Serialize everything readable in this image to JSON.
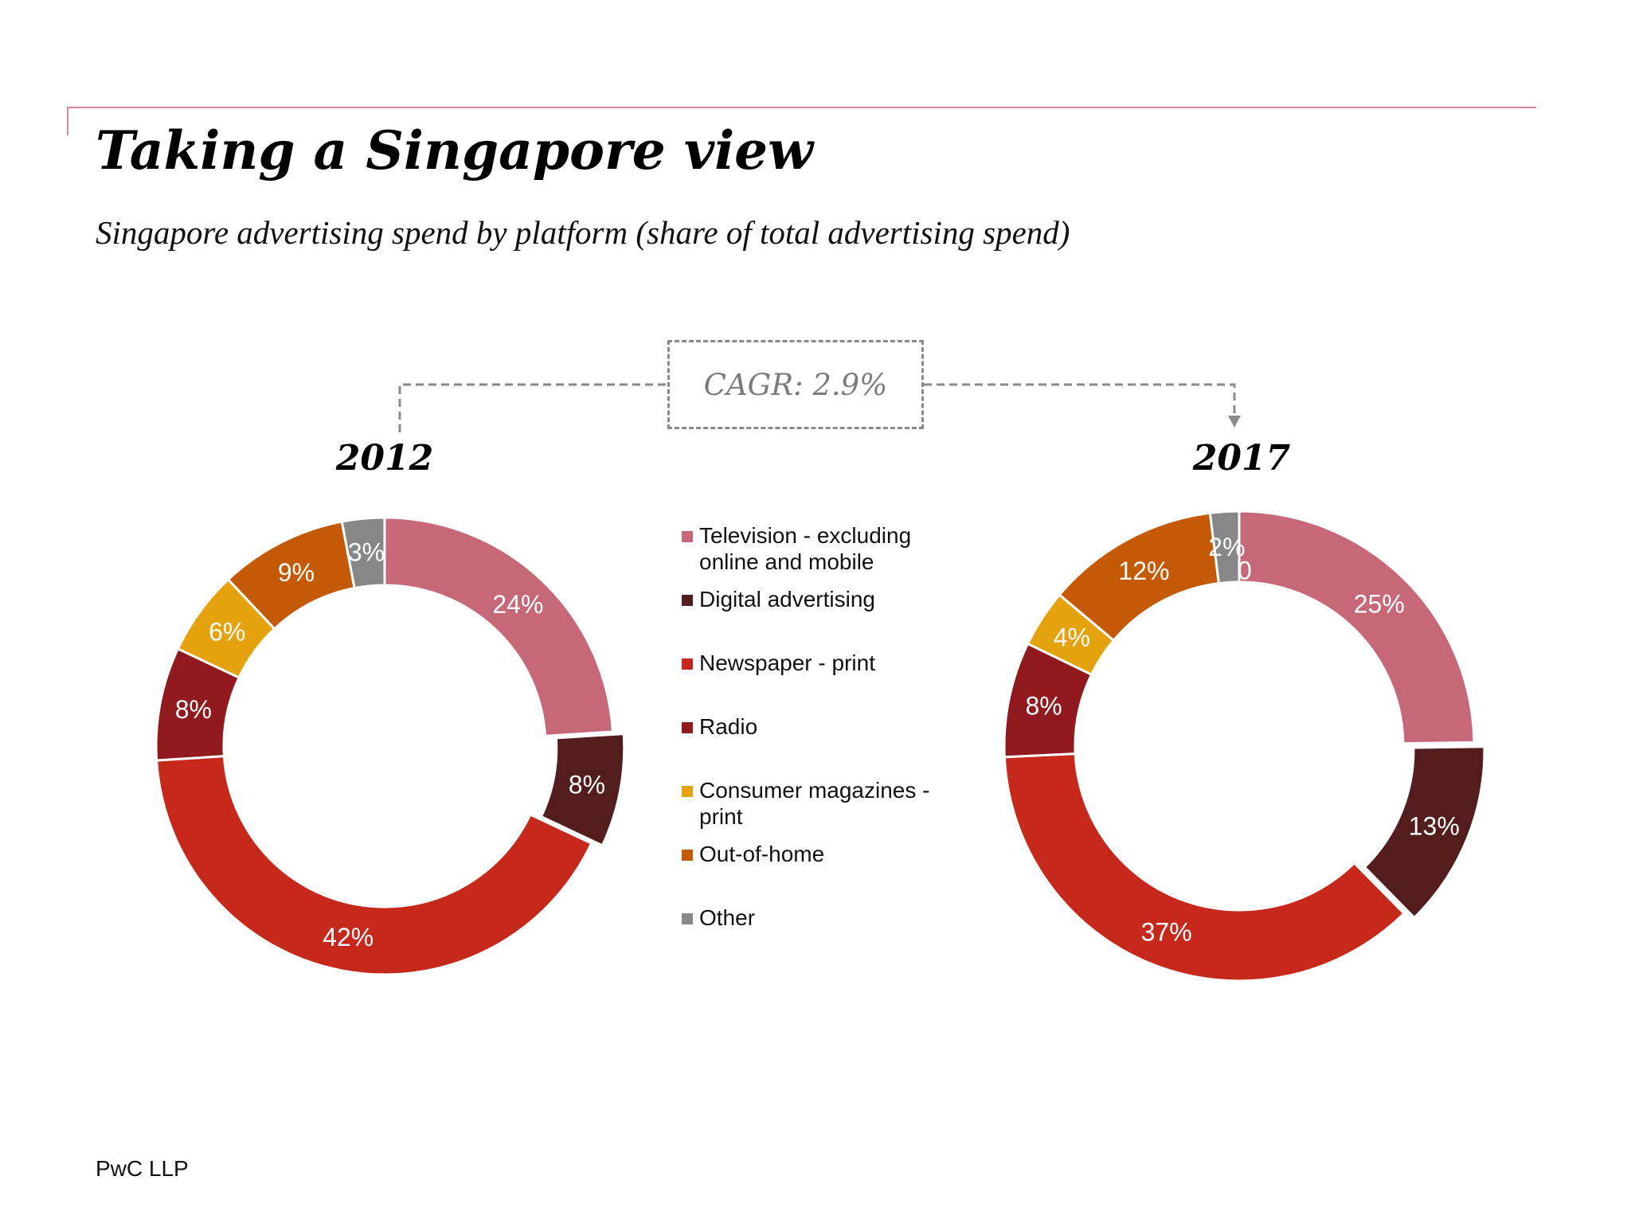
{
  "header": {
    "title": "Taking a Singapore view",
    "subtitle": "Singapore advertising spend by platform (share of total advertising spend)"
  },
  "cagr_label": "CAGR: 2.9%",
  "footer": {
    "source": "PwC LLP"
  },
  "colors": {
    "television": "#c76878",
    "digital": "#541d1d",
    "newspaper": "#c6281c",
    "radio": "#901a1e",
    "magazines": "#e3a20e",
    "ooh": "#c55a06",
    "other": "#878787"
  },
  "chart_data": [
    {
      "type": "pie",
      "variant": "donut",
      "title": "2012",
      "categories": [
        "Television - excluding online and mobile",
        "Digital advertising",
        "Newspaper - print",
        "Radio",
        "Consumer magazines - print",
        "Out-of-home",
        "Other"
      ],
      "values": [
        24,
        8,
        42,
        8,
        6,
        9,
        3
      ],
      "labels": [
        "24%",
        "8%",
        "42%",
        "8%",
        "6%",
        "9%",
        "3%"
      ],
      "exploded": [
        "Digital advertising"
      ]
    },
    {
      "type": "pie",
      "variant": "donut",
      "title": "2017",
      "categories": [
        "Television - excluding online and mobile",
        "Digital advertising",
        "Newspaper - print",
        "Radio",
        "Consumer magazines - print",
        "Out-of-home",
        "Other"
      ],
      "values": [
        25,
        13,
        37,
        8,
        4,
        12,
        2
      ],
      "labels": [
        "25%",
        "13%",
        "37%",
        "8%",
        "4%",
        "12%",
        "2%"
      ],
      "overlapping_label": "0",
      "exploded": [
        "Digital advertising"
      ]
    }
  ],
  "legend": {
    "items": [
      {
        "key": "television",
        "label_lines": [
          "Television - excluding",
          "online and mobile"
        ]
      },
      {
        "key": "digital",
        "label_lines": [
          "Digital advertising"
        ]
      },
      {
        "key": "newspaper",
        "label_lines": [
          "Newspaper - print"
        ]
      },
      {
        "key": "radio",
        "label_lines": [
          "Radio"
        ]
      },
      {
        "key": "magazines",
        "label_lines": [
          "Consumer magazines -",
          "print"
        ]
      },
      {
        "key": "ooh",
        "label_lines": [
          "Out-of-home"
        ]
      },
      {
        "key": "other",
        "label_lines": [
          "Other"
        ]
      }
    ]
  }
}
